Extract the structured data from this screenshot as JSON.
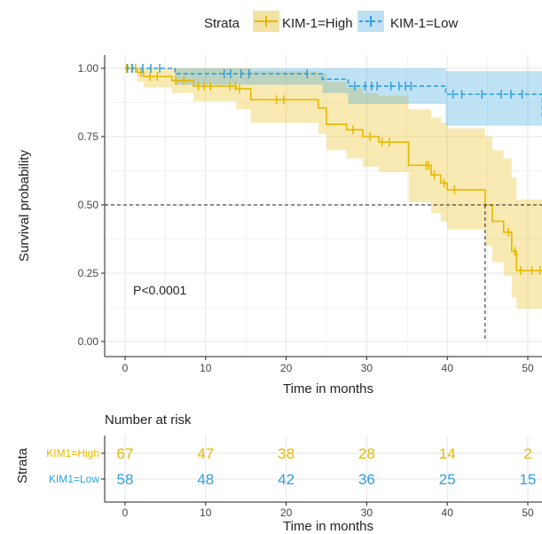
{
  "legend": {
    "title": "Strata",
    "high_label": "KIM-1=High",
    "low_label": "KIM-1=Low"
  },
  "colors": {
    "high": "#E7B800",
    "low": "#2E9FDF"
  },
  "chart_data": {
    "type": "line",
    "subtype": "kaplan-meier",
    "xlabel": "Time in months",
    "ylabel": "Survival probability",
    "xlim": [
      -2,
      52
    ],
    "ylim": [
      0,
      1.0
    ],
    "x_ticks": [
      "0",
      "10",
      "20",
      "30",
      "40",
      "50"
    ],
    "y_ticks": [
      "0.00",
      "0.25",
      "0.50",
      "0.75",
      "1.00"
    ],
    "annotation": "P<0.0001",
    "median_line": 0.5,
    "median_survival_high": 44.7,
    "series": [
      {
        "name": "KIM-1=High",
        "steps": [
          [
            0,
            1.0
          ],
          [
            1.5,
            0.985
          ],
          [
            2.3,
            0.97
          ],
          [
            5.8,
            0.955
          ],
          [
            8.5,
            0.935
          ],
          [
            13.8,
            0.925
          ],
          [
            15.6,
            0.885
          ],
          [
            24,
            0.855
          ],
          [
            25,
            0.795
          ],
          [
            27.5,
            0.775
          ],
          [
            29.5,
            0.75
          ],
          [
            31.5,
            0.73
          ],
          [
            35.2,
            0.645
          ],
          [
            38,
            0.61
          ],
          [
            39.2,
            0.58
          ],
          [
            40,
            0.555
          ],
          [
            44.7,
            0.5
          ],
          [
            45.6,
            0.44
          ],
          [
            47,
            0.4
          ],
          [
            48,
            0.33
          ],
          [
            48.6,
            0.26
          ]
        ],
        "censor_x": [
          0.2,
          0.8,
          1.3,
          2.0,
          3.1,
          4.0,
          6.3,
          7.3,
          9.1,
          9.8,
          10.6,
          13.0,
          13.7,
          14.2,
          18.8,
          19.7,
          28.3,
          30.4,
          31.9,
          32.8,
          37.4,
          37.7,
          38.4,
          39.6,
          40.9,
          47.6,
          48.4,
          49.1,
          50.5,
          51.5
        ],
        "ci_steps": [
          [
            0,
            1.0,
            1.0
          ],
          [
            1.5,
            1.0,
            0.95
          ],
          [
            2.3,
            1.0,
            0.93
          ],
          [
            5.8,
            1.0,
            0.91
          ],
          [
            8.5,
            1.0,
            0.88
          ],
          [
            13.8,
            1.0,
            0.85
          ],
          [
            15.6,
            0.99,
            0.8
          ],
          [
            24,
            0.98,
            0.76
          ],
          [
            25,
            0.95,
            0.7
          ],
          [
            27.5,
            0.93,
            0.67
          ],
          [
            29.5,
            0.91,
            0.64
          ],
          [
            31.5,
            0.9,
            0.62
          ],
          [
            35.2,
            0.85,
            0.51
          ],
          [
            38,
            0.82,
            0.47
          ],
          [
            39.2,
            0.8,
            0.44
          ],
          [
            40,
            0.78,
            0.41
          ],
          [
            44.7,
            0.75,
            0.35
          ],
          [
            45.6,
            0.7,
            0.29
          ],
          [
            47,
            0.67,
            0.24
          ],
          [
            48,
            0.6,
            0.16
          ],
          [
            48.6,
            0.52,
            0.12
          ]
        ]
      },
      {
        "name": "KIM-1=Low",
        "steps": [
          [
            0,
            1.0
          ],
          [
            6.2,
            0.98
          ],
          [
            24.5,
            0.96
          ],
          [
            27.7,
            0.935
          ],
          [
            39.8,
            0.905
          ],
          [
            51.8,
            0.82
          ]
        ],
        "censor_x": [
          0.3,
          0.9,
          2.2,
          3.2,
          4.3,
          12.3,
          13.1,
          14.4,
          15.4,
          22.6,
          28.5,
          29.8,
          30.6,
          31.3,
          33.0,
          34.0,
          34.8,
          35.5,
          40.7,
          41.8,
          44.3,
          46.7,
          47.9,
          49.3
        ],
        "ci_steps": [
          [
            0,
            1.0,
            1.0
          ],
          [
            6.2,
            1.0,
            0.94
          ],
          [
            24.5,
            1.0,
            0.91
          ],
          [
            27.7,
            1.0,
            0.87
          ],
          [
            39.8,
            0.99,
            0.79
          ],
          [
            51.8,
            0.94,
            0.7
          ]
        ]
      }
    ],
    "risk_table": {
      "title": "Number at risk",
      "axis_label": "Strata",
      "xlabel": "Time in months",
      "times": [
        0,
        10,
        20,
        30,
        40,
        50
      ],
      "rows": [
        {
          "label": "KIM1=High",
          "counts": [
            "67",
            "47",
            "38",
            "28",
            "14",
            "2"
          ]
        },
        {
          "label": "KIM1=Low",
          "counts": [
            "58",
            "48",
            "42",
            "36",
            "25",
            "15"
          ]
        }
      ]
    }
  }
}
